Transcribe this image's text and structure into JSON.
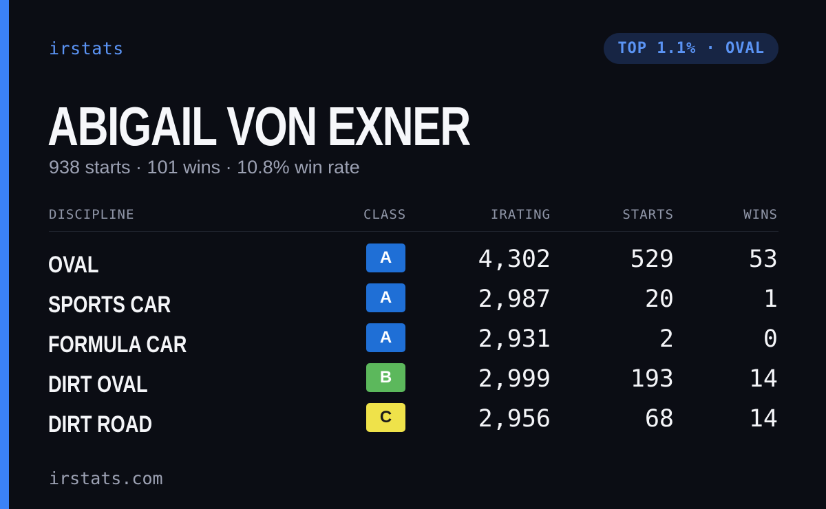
{
  "brand": "irstats",
  "rank_badge": "TOP 1.1% · OVAL",
  "driver_name": "ABIGAIL VON EXNER",
  "summary": "938 starts · 101 wins · 10.8% win rate",
  "columns": {
    "discipline": "DISCIPLINE",
    "class": "CLASS",
    "irating": "IRATING",
    "starts": "STARTS",
    "wins": "WINS"
  },
  "rows": [
    {
      "discipline": "OVAL",
      "class": "A",
      "class_color": "#1f6fd6",
      "class_text_color": "#ffffff",
      "irating": "4,302",
      "starts": "529",
      "wins": "53"
    },
    {
      "discipline": "SPORTS CAR",
      "class": "A",
      "class_color": "#1f6fd6",
      "class_text_color": "#ffffff",
      "irating": "2,987",
      "starts": "20",
      "wins": "1"
    },
    {
      "discipline": "FORMULA CAR",
      "class": "A",
      "class_color": "#1f6fd6",
      "class_text_color": "#ffffff",
      "irating": "2,931",
      "starts": "2",
      "wins": "0"
    },
    {
      "discipline": "DIRT OVAL",
      "class": "B",
      "class_color": "#5cb85c",
      "class_text_color": "#ffffff",
      "irating": "2,999",
      "starts": "193",
      "wins": "14"
    },
    {
      "discipline": "DIRT ROAD",
      "class": "C",
      "class_color": "#efe24a",
      "class_text_color": "#1a1a1a",
      "irating": "2,956",
      "starts": "68",
      "wins": "14"
    }
  ],
  "footer": "irstats.com",
  "colors": {
    "background": "#0b0d14",
    "accent": "#3b82f6",
    "badge_bg": "#172544"
  }
}
